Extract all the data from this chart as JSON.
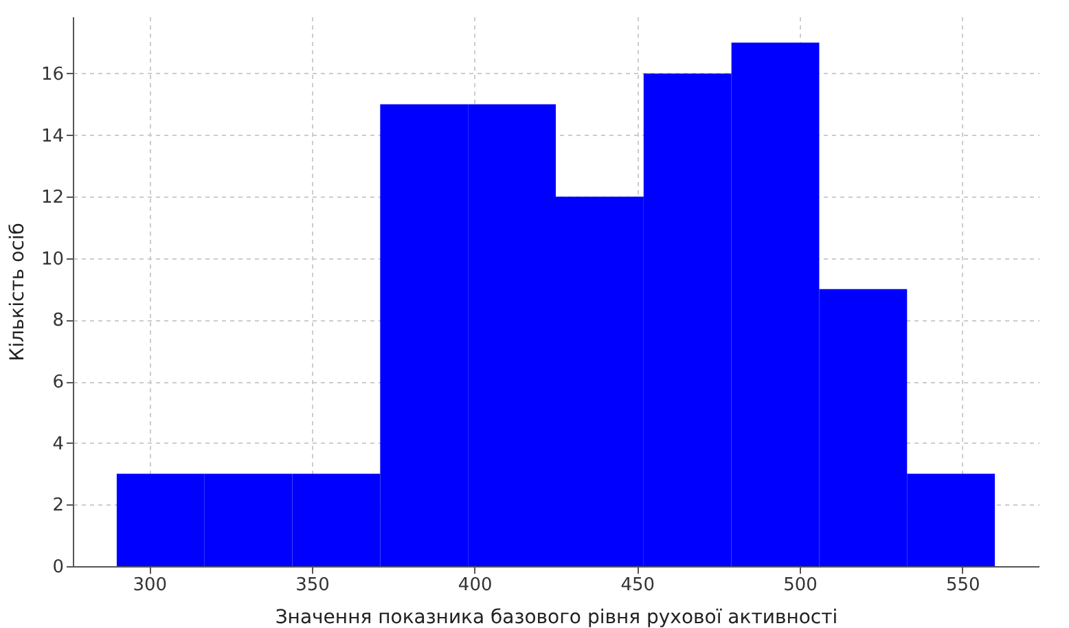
{
  "chart_data": {
    "type": "histogram",
    "xlabel": "Значення показника базового рівня рухової активності",
    "ylabel": "Кількість осіб",
    "bins": [
      290,
      317,
      344,
      371,
      398,
      425,
      452,
      479,
      506,
      533,
      560
    ],
    "values": [
      3,
      3,
      3,
      15,
      15,
      12,
      16,
      17,
      9,
      3
    ],
    "color": "#0000ff",
    "xlim": [
      276.5,
      573.5
    ],
    "xticks": [
      300,
      350,
      400,
      450,
      500,
      550
    ],
    "ylim": [
      0,
      17.85
    ],
    "yticks": [
      0,
      2,
      4,
      6,
      8,
      10,
      12,
      14,
      16
    ],
    "grid": true
  }
}
